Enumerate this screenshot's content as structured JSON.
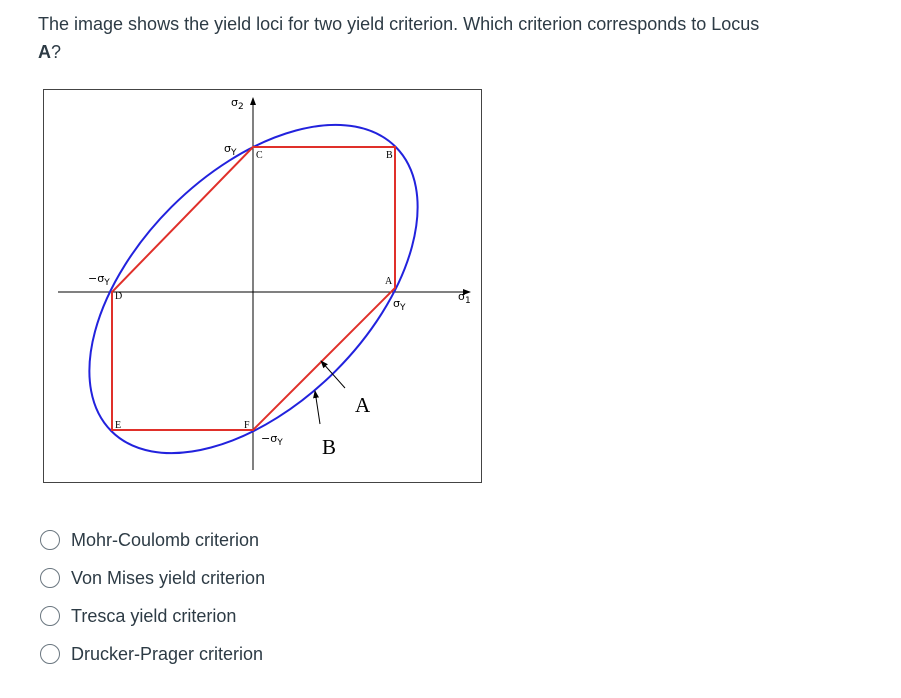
{
  "question": {
    "text": "The image shows the yield loci for two yield criterion. Which criterion corresponds to Locus ",
    "bold": "A",
    "end": "?"
  },
  "diagram": {
    "axis_labels": [
      {
        "base": "σ",
        "sub": "2"
      },
      {
        "base": "σ",
        "sub": "1"
      }
    ],
    "sigma_labels": [
      {
        "base": "σ",
        "sub": "Y"
      },
      {
        "base": "−σ",
        "sub": "Y"
      },
      {
        "base": "σ",
        "sub": "Y"
      },
      {
        "base": "−σ",
        "sub": "Y"
      }
    ],
    "points": [
      "C",
      "B",
      "A",
      "D",
      "E",
      "F"
    ],
    "locus_labels": [
      "A",
      "B"
    ]
  },
  "options": [
    "Mohr-Coulomb criterion",
    "Von Mises yield criterion",
    "Tresca yield criterion",
    "Drucker-Prager criterion"
  ]
}
